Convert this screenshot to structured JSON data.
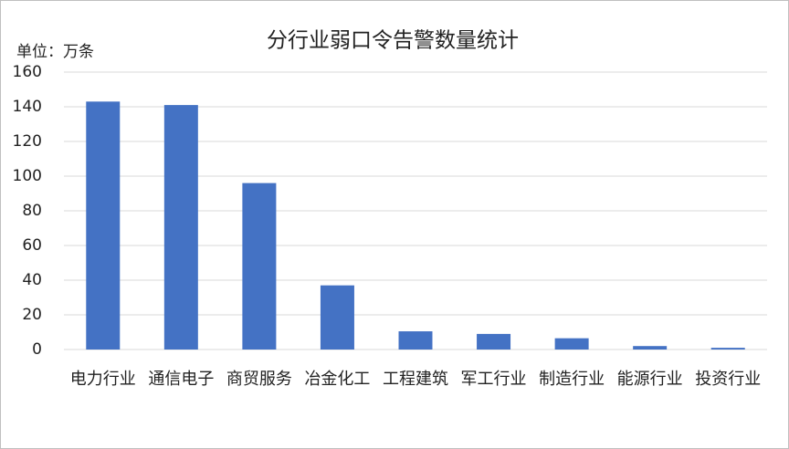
{
  "chart_data": {
    "type": "bar",
    "title": "分行业弱口令告警数量统计",
    "y_axis_label": "单位：万条",
    "categories": [
      "电力行业",
      "通信电子",
      "商贸服务",
      "冶金化工",
      "工程建筑",
      "军工行业",
      "制造行业",
      "能源行业",
      "投资行业"
    ],
    "values": [
      143,
      141,
      96,
      37,
      10.5,
      9,
      6.5,
      2,
      1
    ],
    "color": "#4472c4",
    "ylim": [
      0,
      160
    ],
    "yticks": [
      0,
      20,
      40,
      60,
      80,
      100,
      120,
      140,
      160
    ],
    "grid": true
  }
}
